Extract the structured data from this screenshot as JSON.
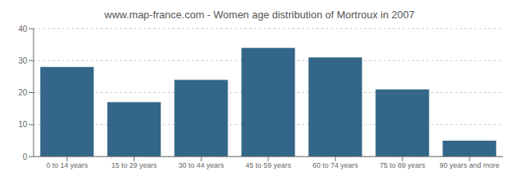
{
  "chart_data": {
    "type": "bar",
    "title": "www.map-france.com - Women age distribution of Mortroux in 2007",
    "categories": [
      "0 to 14 years",
      "15 to 29 years",
      "30 to 44 years",
      "45 to 59 years",
      "60 to 74 years",
      "75 to 89 years",
      "90 years and more"
    ],
    "values": [
      28,
      17,
      24,
      34,
      31,
      21,
      5
    ],
    "color": "#336688",
    "ylim": [
      0,
      40
    ],
    "yticks": [
      0,
      10,
      20,
      30,
      40
    ],
    "grid": true
  }
}
